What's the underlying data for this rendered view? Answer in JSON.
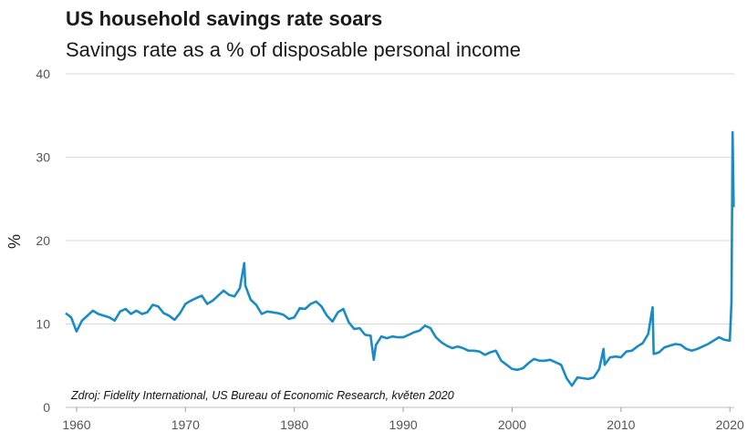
{
  "header": {
    "title": "US household savings rate soars",
    "subtitle": "Savings rate as a % of disposable personal income"
  },
  "source": "Zdroj: Fidelity International, US Bureau of Economic Research, květen 2020",
  "colors": {
    "line": "#1a8bc4",
    "grid": "#d9d9d9",
    "axis": "#555555"
  },
  "chart_data": {
    "type": "line",
    "title": "US household savings rate soars",
    "subtitle": "Savings rate as a % of disposable personal income",
    "xlabel": "",
    "ylabel": "%",
    "xlim": [
      1959,
      2020.4
    ],
    "ylim": [
      0,
      40
    ],
    "x_ticks": [
      1960,
      1970,
      1980,
      1990,
      2000,
      2010,
      2020
    ],
    "y_ticks": [
      0,
      10,
      20,
      30,
      40
    ],
    "grid": "horizontal",
    "legend": "none",
    "series": [
      {
        "values": [
          [
            1959.0,
            11.3
          ],
          [
            1959.5,
            10.8
          ],
          [
            1960.0,
            9.1
          ],
          [
            1960.5,
            10.4
          ],
          [
            1961.0,
            11.0
          ],
          [
            1961.5,
            11.6
          ],
          [
            1962.0,
            11.2
          ],
          [
            1962.5,
            11.0
          ],
          [
            1963.0,
            10.8
          ],
          [
            1963.5,
            10.4
          ],
          [
            1964.0,
            11.5
          ],
          [
            1964.5,
            11.8
          ],
          [
            1965.0,
            11.2
          ],
          [
            1965.5,
            11.6
          ],
          [
            1966.0,
            11.2
          ],
          [
            1966.5,
            11.4
          ],
          [
            1967.0,
            12.3
          ],
          [
            1967.5,
            12.1
          ],
          [
            1968.0,
            11.3
          ],
          [
            1968.5,
            11.0
          ],
          [
            1969.0,
            10.5
          ],
          [
            1969.5,
            11.3
          ],
          [
            1970.0,
            12.4
          ],
          [
            1970.5,
            12.8
          ],
          [
            1971.0,
            13.1
          ],
          [
            1971.5,
            13.4
          ],
          [
            1972.0,
            12.4
          ],
          [
            1972.5,
            12.8
          ],
          [
            1973.0,
            13.4
          ],
          [
            1973.5,
            14.0
          ],
          [
            1974.0,
            13.5
          ],
          [
            1974.5,
            13.3
          ],
          [
            1975.0,
            14.3
          ],
          [
            1975.4,
            17.3
          ],
          [
            1975.5,
            14.6
          ],
          [
            1976.0,
            12.9
          ],
          [
            1976.5,
            12.3
          ],
          [
            1977.0,
            11.2
          ],
          [
            1977.5,
            11.5
          ],
          [
            1978.0,
            11.4
          ],
          [
            1978.5,
            11.3
          ],
          [
            1979.0,
            11.1
          ],
          [
            1979.5,
            10.6
          ],
          [
            1980.0,
            10.8
          ],
          [
            1980.5,
            11.9
          ],
          [
            1981.0,
            11.8
          ],
          [
            1981.5,
            12.4
          ],
          [
            1982.0,
            12.7
          ],
          [
            1982.5,
            12.1
          ],
          [
            1983.0,
            11.0
          ],
          [
            1983.5,
            10.3
          ],
          [
            1984.0,
            11.4
          ],
          [
            1984.5,
            11.8
          ],
          [
            1985.0,
            10.2
          ],
          [
            1985.5,
            9.4
          ],
          [
            1986.0,
            9.5
          ],
          [
            1986.5,
            8.7
          ],
          [
            1987.0,
            8.6
          ],
          [
            1987.3,
            5.7
          ],
          [
            1987.5,
            7.5
          ],
          [
            1988.0,
            8.5
          ],
          [
            1988.5,
            8.3
          ],
          [
            1989.0,
            8.5
          ],
          [
            1989.5,
            8.4
          ],
          [
            1990.0,
            8.4
          ],
          [
            1990.5,
            8.7
          ],
          [
            1991.0,
            9.0
          ],
          [
            1991.5,
            9.2
          ],
          [
            1992.0,
            9.8
          ],
          [
            1992.5,
            9.5
          ],
          [
            1993.0,
            8.4
          ],
          [
            1993.5,
            7.8
          ],
          [
            1994.0,
            7.4
          ],
          [
            1994.5,
            7.1
          ],
          [
            1995.0,
            7.3
          ],
          [
            1995.5,
            7.1
          ],
          [
            1996.0,
            6.8
          ],
          [
            1996.5,
            6.8
          ],
          [
            1997.0,
            6.7
          ],
          [
            1997.5,
            6.3
          ],
          [
            1998.0,
            6.6
          ],
          [
            1998.5,
            6.8
          ],
          [
            1999.0,
            5.6
          ],
          [
            1999.5,
            5.1
          ],
          [
            2000.0,
            4.6
          ],
          [
            2000.5,
            4.5
          ],
          [
            2001.0,
            4.7
          ],
          [
            2001.5,
            5.3
          ],
          [
            2002.0,
            5.8
          ],
          [
            2002.5,
            5.6
          ],
          [
            2003.0,
            5.6
          ],
          [
            2003.5,
            5.7
          ],
          [
            2004.0,
            5.4
          ],
          [
            2004.5,
            5.1
          ],
          [
            2005.0,
            3.5
          ],
          [
            2005.5,
            2.6
          ],
          [
            2006.0,
            3.6
          ],
          [
            2006.5,
            3.5
          ],
          [
            2007.0,
            3.4
          ],
          [
            2007.5,
            3.6
          ],
          [
            2008.0,
            4.6
          ],
          [
            2008.4,
            7.0
          ],
          [
            2008.5,
            5.1
          ],
          [
            2009.0,
            6.0
          ],
          [
            2009.5,
            6.1
          ],
          [
            2010.0,
            6.0
          ],
          [
            2010.5,
            6.7
          ],
          [
            2011.0,
            6.8
          ],
          [
            2011.5,
            7.3
          ],
          [
            2012.0,
            7.7
          ],
          [
            2012.5,
            8.8
          ],
          [
            2012.9,
            12.0
          ],
          [
            2013.0,
            6.4
          ],
          [
            2013.5,
            6.6
          ],
          [
            2014.0,
            7.2
          ],
          [
            2014.5,
            7.4
          ],
          [
            2015.0,
            7.6
          ],
          [
            2015.5,
            7.5
          ],
          [
            2016.0,
            7.0
          ],
          [
            2016.5,
            6.8
          ],
          [
            2017.0,
            7.0
          ],
          [
            2017.5,
            7.3
          ],
          [
            2018.0,
            7.6
          ],
          [
            2018.5,
            8.0
          ],
          [
            2019.0,
            8.4
          ],
          [
            2019.5,
            8.1
          ],
          [
            2020.0,
            8.0
          ],
          [
            2020.15,
            12.7
          ],
          [
            2020.25,
            33.0
          ],
          [
            2020.35,
            24.0
          ]
        ]
      }
    ]
  }
}
